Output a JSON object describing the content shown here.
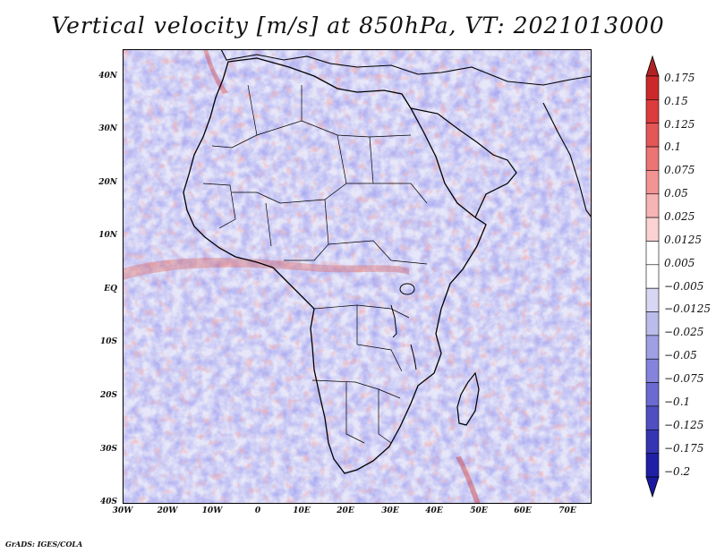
{
  "title": "Vertical velocity [m/s] at 850hPa, VT: 2021013000",
  "footer": "GrADS: IGES/COLA",
  "axes": {
    "lat_labels": [
      "40N",
      "30N",
      "20N",
      "10N",
      "EQ",
      "10S",
      "20S",
      "30S",
      "40S"
    ],
    "lon_labels": [
      "30W",
      "20W",
      "10W",
      "0",
      "10E",
      "20E",
      "30E",
      "40E",
      "50E",
      "60E",
      "70E"
    ],
    "lat_range": [
      -40,
      45
    ],
    "lon_range": [
      -30,
      76
    ]
  },
  "colorbar": {
    "labels": [
      "0.175",
      "0.15",
      "0.125",
      "0.1",
      "0.075",
      "0.05",
      "0.025",
      "0.0125",
      "0.005",
      "−0.005",
      "−0.0125",
      "−0.025",
      "−0.05",
      "−0.075",
      "−0.1",
      "−0.125",
      "−0.175",
      "−0.2"
    ],
    "colors": [
      "#b22222",
      "#cc2a2a",
      "#dc3c3c",
      "#e45757",
      "#ec7474",
      "#f29494",
      "#f7b4b4",
      "#fbd2d2",
      "#ffffff",
      "#ffffff",
      "#d7d7f3",
      "#bcbcec",
      "#9f9fe4",
      "#8484dc",
      "#6a6ad0",
      "#4f4fc2",
      "#3535b3",
      "#2020a6",
      "#1a1aa0"
    ]
  },
  "colors": {
    "positive": "#d9443c",
    "negative": "#5b5bd0",
    "coast": "#000000"
  }
}
